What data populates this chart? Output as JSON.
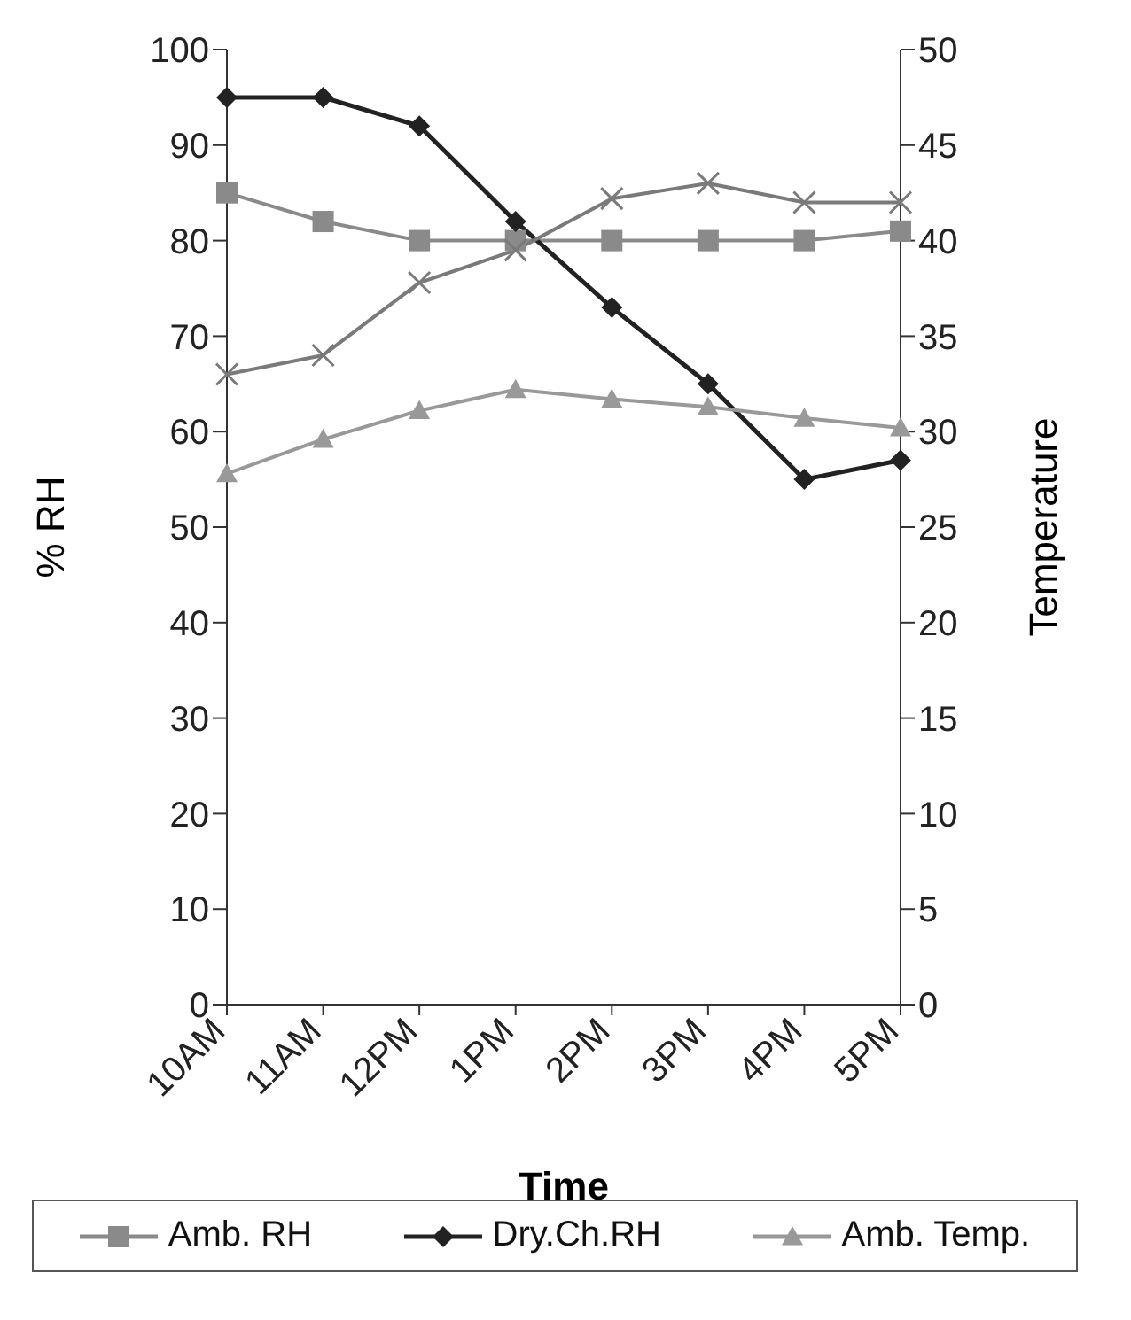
{
  "chart_data": {
    "type": "line",
    "xlabel": "Time",
    "ylabel": "% RH",
    "y2label": "Temperature",
    "categories": [
      "10AM",
      "11AM",
      "12PM",
      "1PM",
      "2PM",
      "3PM",
      "4PM",
      "5PM"
    ],
    "ylim": [
      0,
      100
    ],
    "yticks": [
      0,
      10,
      20,
      30,
      40,
      50,
      60,
      70,
      80,
      90,
      100
    ],
    "y2lim": [
      0,
      50
    ],
    "y2ticks": [
      0,
      5,
      10,
      15,
      20,
      25,
      30,
      35,
      40,
      45,
      50
    ],
    "grid": false,
    "legend": "bottom",
    "line_style": "solid",
    "series": [
      {
        "name": "Amb. RH",
        "color": "#8a8a8a",
        "marker": "square",
        "values": [
          85,
          82,
          80,
          80,
          80,
          80,
          80,
          81
        ]
      },
      {
        "name": "Dry.Ch.RH",
        "color": "#222222",
        "marker": "diamond",
        "values": [
          95,
          95,
          92,
          82,
          73,
          65,
          55,
          57
        ]
      },
      {
        "name": "Amb. Temp.",
        "color": "#999999",
        "marker": "triangle",
        "axis": "y2",
        "values": [
          27.8,
          29.6,
          31.1,
          32.2,
          31.7,
          31.3,
          30.7,
          30.2
        ]
      },
      {
        "color": "#7a7a7a",
        "marker": "cross",
        "axis": "y2",
        "values": [
          33,
          34,
          37.8,
          39.5,
          42.2,
          43,
          42,
          42
        ]
      }
    ]
  }
}
